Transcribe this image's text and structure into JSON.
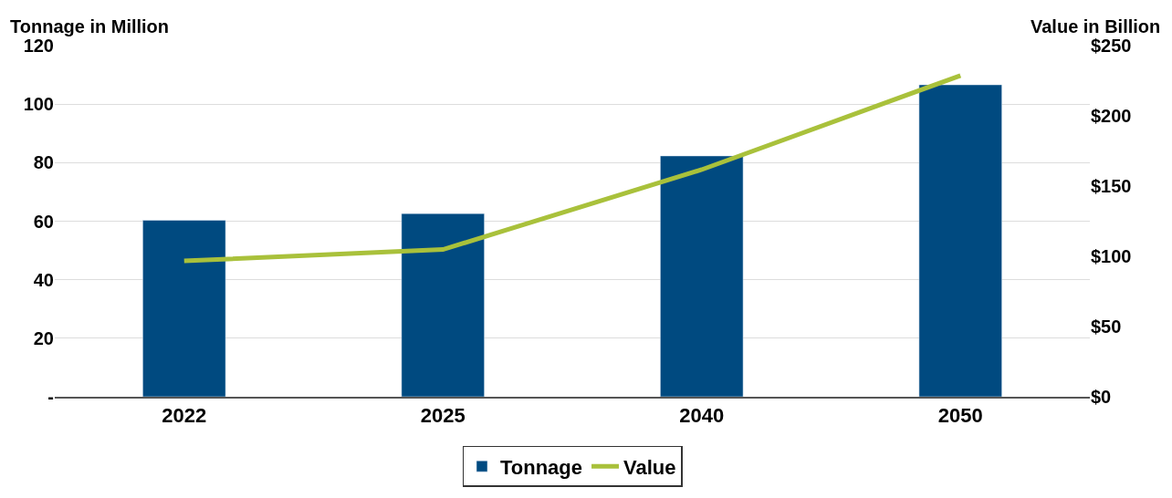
{
  "chart_data": {
    "type": "bar",
    "ylabel": "Tonnage in Million",
    "y2label": "Value in Billion",
    "categories": [
      "2022",
      "2025",
      "2040",
      "2050"
    ],
    "series": [
      {
        "name": "Tonnage",
        "color": "#004a80",
        "values": [
          60.3,
          62.6,
          82.3,
          106.6
        ]
      },
      {
        "name": "Value",
        "type": "line",
        "axis": "y2",
        "color": "#a9c13b",
        "values": [
          96.7,
          104.8,
          161.7,
          228.7
        ]
      }
    ],
    "ylim": [
      0,
      120
    ],
    "yticks": [
      {
        "value": 0,
        "label": "-"
      },
      20,
      40,
      60,
      80,
      100,
      120
    ],
    "y2lim": [
      0,
      250
    ],
    "y2ticks": [
      {
        "value": 0,
        "label": "$0"
      },
      {
        "value": 50,
        "label": "$50"
      },
      {
        "value": 100,
        "label": "$100"
      },
      {
        "value": 150,
        "label": "$150"
      },
      {
        "value": 200,
        "label": "$200"
      },
      {
        "value": 250,
        "label": "$250"
      }
    ],
    "grid": "y",
    "legend": "bottom",
    "marker": "none",
    "line_style": "solid"
  }
}
